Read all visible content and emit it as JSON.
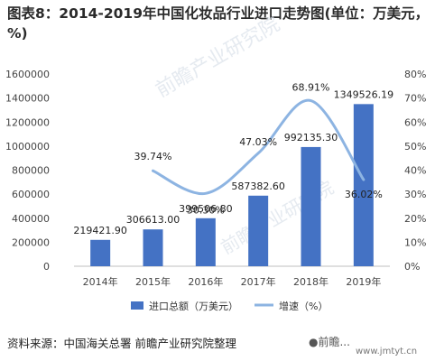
{
  "title": "图表8：2014-2019年中国化妆品行业进口走势图(单位：万美元，%)",
  "source": "资料来源：中国海关总署 前瞻产业研究院整理",
  "watermark": "前瞻产业研究院",
  "brand": "●前瞻...",
  "brand_site": "www.jmtyt.cn",
  "chart_data": {
    "type": "bar",
    "categories": [
      "2014年",
      "2015年",
      "2016年",
      "2017年",
      "2018年",
      "2019年"
    ],
    "series": [
      {
        "name": "进口总额（万美元）",
        "type": "bar",
        "axis": "left",
        "color": "#4472c4",
        "values": [
          219421.9,
          306613.0,
          399506.8,
          587382.6,
          992135.3,
          1349526.19
        ],
        "labels": [
          "219421.90",
          "306613.00",
          "399506.80",
          "587382.60",
          "992135.30",
          "1349526.19"
        ]
      },
      {
        "name": "增速（%）",
        "type": "line",
        "axis": "right",
        "color": "#8db4e2",
        "values": [
          null,
          39.74,
          30.3,
          47.03,
          68.91,
          36.02
        ],
        "labels": [
          "",
          "39.74%",
          "30.30%",
          "47.03%",
          "68.91%",
          "36.02%"
        ]
      }
    ],
    "y_left": {
      "min": 0,
      "max": 1600000,
      "ticks": [
        "0",
        "200000",
        "400000",
        "600000",
        "800000",
        "1000000",
        "1200000",
        "1400000",
        "1600000"
      ]
    },
    "y_right": {
      "min": 0,
      "max": 80,
      "ticks": [
        "0%",
        "10%",
        "20%",
        "30%",
        "40%",
        "50%",
        "60%",
        "70%",
        "80%"
      ]
    },
    "grid": false,
    "legend_position": "bottom"
  }
}
